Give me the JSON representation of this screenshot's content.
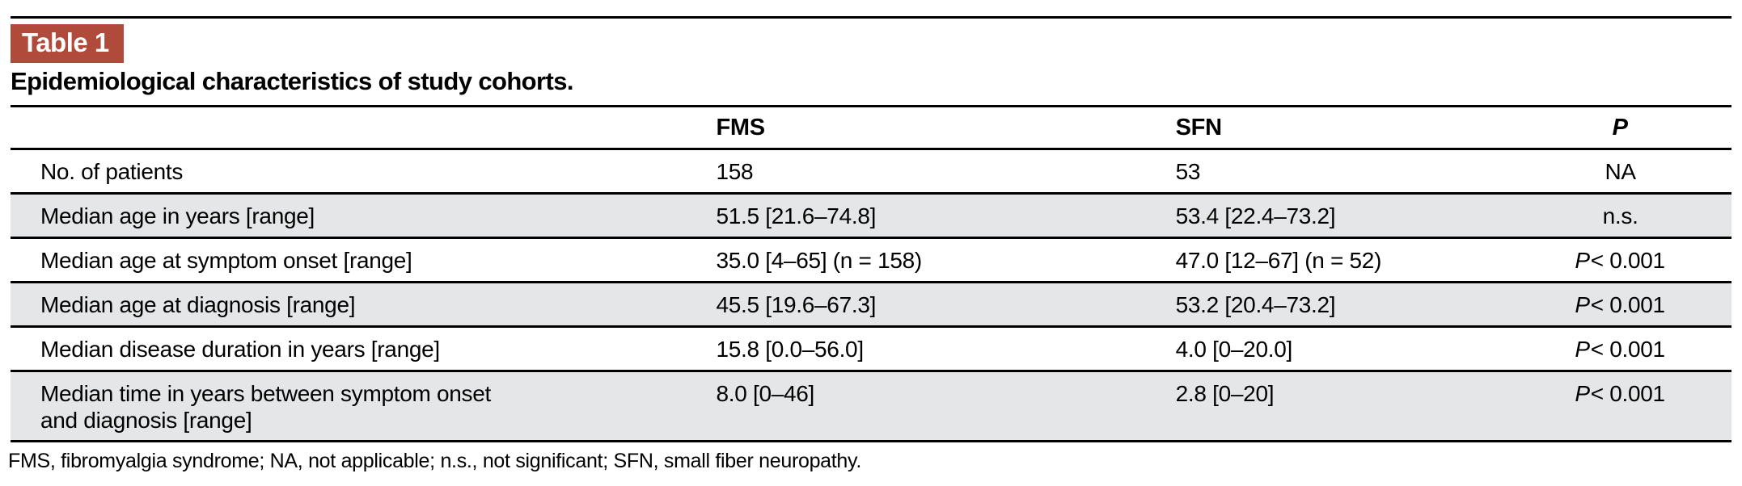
{
  "header": {
    "badge_label": "Table 1",
    "title": "Epidemiological characteristics of study cohorts."
  },
  "table": {
    "columns": [
      "",
      "FMS",
      "SFN",
      "P"
    ],
    "rows": [
      {
        "label": "No. of patients",
        "fms": "158",
        "sfn": "53",
        "p_prefix": "",
        "p_value": "NA"
      },
      {
        "label": "Median age in years [range]",
        "fms": "51.5 [21.6–74.8]",
        "sfn": "53.4 [22.4–73.2]",
        "p_prefix": "",
        "p_value": "n.s."
      },
      {
        "label": "Median age at symptom onset [range]",
        "fms": "35.0 [4–65] (n = 158)",
        "sfn": "47.0 [12–67] (n = 52)",
        "p_prefix": "P",
        "p_value": "< 0.001"
      },
      {
        "label": "Median age at diagnosis [range]",
        "fms": "45.5 [19.6–67.3]",
        "sfn": "53.2 [20.4–73.2]",
        "p_prefix": "P",
        "p_value": "< 0.001"
      },
      {
        "label": "Median disease duration in years [range]",
        "fms": "15.8 [0.0–56.0]",
        "sfn": "4.0 [0–20.0]",
        "p_prefix": "P",
        "p_value": "< 0.001"
      },
      {
        "label": "Median time in years between symptom onset\nand diagnosis [range]",
        "fms": "8.0 [0–46]",
        "sfn": "2.8 [0–20]",
        "p_prefix": "P",
        "p_value": "< 0.001"
      }
    ],
    "footnote": "FMS, fibromyalgia syndrome; NA, not applicable; n.s., not significant; SFN, small fiber neuropathy."
  },
  "colors": {
    "badge_background": "#b04a3a",
    "shaded_row": "#e5e6e7",
    "rule": "#000000",
    "text": "#000000"
  }
}
